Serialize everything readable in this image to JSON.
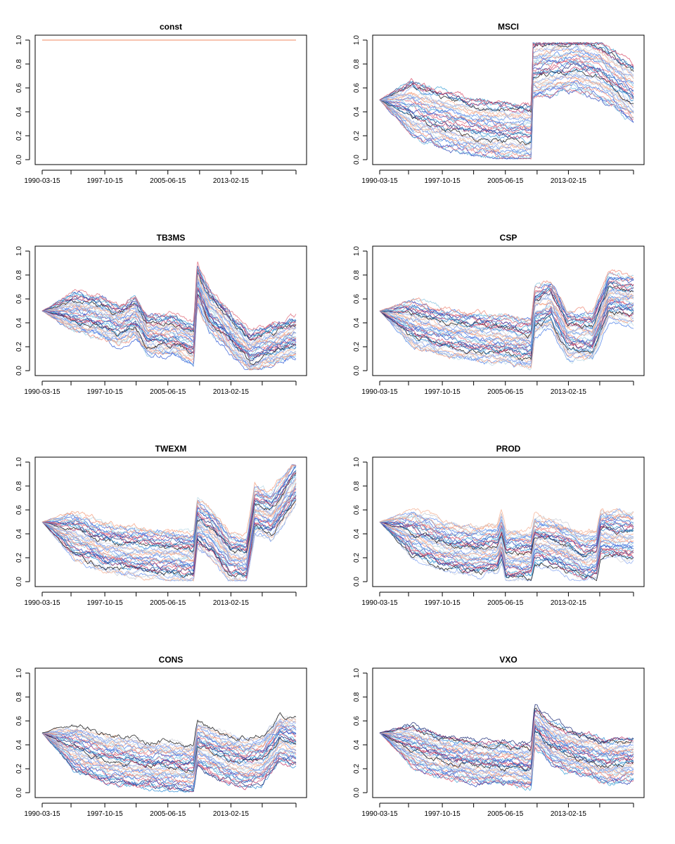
{
  "figure": {
    "x_tick_labels": [
      "1990-03-15",
      "1997-10-15",
      "2005-06-15",
      "2013-02-15"
    ],
    "y_tick_labels": [
      "0.0",
      "0.2",
      "0.4",
      "0.6",
      "0.8",
      "1.0"
    ],
    "palette": [
      "#1f2f7a",
      "#2b45b8",
      "#3a63d8",
      "#4d7ee8",
      "#6a95f0",
      "#8aa9f2",
      "#2f8fd6",
      "#42a5d8",
      "#68b8de",
      "#90c8e0",
      "#b8d8e6",
      "#c9ccd4",
      "#d2d4da",
      "#c23a6b",
      "#d9536f",
      "#e06c7a",
      "#f08a78",
      "#f5a080",
      "#f4b195",
      "#111111"
    ]
  },
  "chart_data": [
    {
      "type": "line",
      "title": "const",
      "x_range": [
        1990.2,
        2021.0
      ],
      "ylim": [
        0,
        1
      ],
      "n_series": 1,
      "shape": [
        [
          1990.2,
          1.0
        ],
        [
          2021.0,
          1.0
        ]
      ],
      "spread": 0.0
    },
    {
      "type": "line",
      "title": "MSCI",
      "x_range": [
        1990.2,
        2021.0
      ],
      "ylim": [
        0,
        1
      ],
      "n_series": 40,
      "shape": [
        [
          1990.2,
          0.5
        ],
        [
          1993.5,
          0.44
        ],
        [
          1997.0,
          0.35
        ],
        [
          2001.0,
          0.28
        ],
        [
          2005.0,
          0.24
        ],
        [
          2008.6,
          0.22
        ],
        [
          2008.8,
          0.75
        ],
        [
          2011.0,
          0.78
        ],
        [
          2014.0,
          0.82
        ],
        [
          2017.0,
          0.75
        ],
        [
          2021.0,
          0.55
        ]
      ],
      "spread": 0.24
    },
    {
      "type": "line",
      "title": "TB3MS",
      "x_range": [
        1990.2,
        2021.0
      ],
      "ylim": [
        0,
        1
      ],
      "n_series": 40,
      "shape": [
        [
          1990.2,
          0.5
        ],
        [
          1994.0,
          0.49
        ],
        [
          1997.5,
          0.44
        ],
        [
          1999.5,
          0.38
        ],
        [
          2001.5,
          0.45
        ],
        [
          2003.0,
          0.3
        ],
        [
          2006.0,
          0.3
        ],
        [
          2008.6,
          0.22
        ],
        [
          2009.0,
          0.72
        ],
        [
          2010.5,
          0.5
        ],
        [
          2012.0,
          0.4
        ],
        [
          2013.5,
          0.28
        ],
        [
          2015.5,
          0.15
        ],
        [
          2017.0,
          0.2
        ],
        [
          2021.0,
          0.28
        ]
      ],
      "spread": 0.17
    },
    {
      "type": "line",
      "title": "CSP",
      "x_range": [
        1990.2,
        2021.0
      ],
      "ylim": [
        0,
        1
      ],
      "n_series": 40,
      "shape": [
        [
          1990.2,
          0.5
        ],
        [
          1994.0,
          0.4
        ],
        [
          1998.0,
          0.32
        ],
        [
          2002.0,
          0.28
        ],
        [
          2006.0,
          0.25
        ],
        [
          2008.6,
          0.22
        ],
        [
          2009.0,
          0.5
        ],
        [
          2011.0,
          0.55
        ],
        [
          2013.0,
          0.3
        ],
        [
          2016.0,
          0.28
        ],
        [
          2018.0,
          0.62
        ],
        [
          2021.0,
          0.58
        ]
      ],
      "spread": 0.2
    },
    {
      "type": "line",
      "title": "TWEXM",
      "x_range": [
        1990.2,
        2021.0
      ],
      "ylim": [
        0,
        1
      ],
      "n_series": 40,
      "shape": [
        [
          1990.2,
          0.5
        ],
        [
          1994.0,
          0.38
        ],
        [
          1998.0,
          0.28
        ],
        [
          2002.0,
          0.24
        ],
        [
          2006.0,
          0.22
        ],
        [
          2008.6,
          0.2
        ],
        [
          2009.0,
          0.48
        ],
        [
          2011.0,
          0.38
        ],
        [
          2013.0,
          0.2
        ],
        [
          2015.0,
          0.18
        ],
        [
          2016.0,
          0.6
        ],
        [
          2018.0,
          0.55
        ],
        [
          2021.0,
          0.84
        ]
      ],
      "spread": 0.2
    },
    {
      "type": "line",
      "title": "PROD",
      "x_range": [
        1990.2,
        2021.0
      ],
      "ylim": [
        0,
        1
      ],
      "n_series": 40,
      "shape": [
        [
          1990.2,
          0.5
        ],
        [
          1994.0,
          0.4
        ],
        [
          1998.0,
          0.3
        ],
        [
          2002.0,
          0.25
        ],
        [
          2004.5,
          0.28
        ],
        [
          2005.0,
          0.38
        ],
        [
          2005.5,
          0.22
        ],
        [
          2008.6,
          0.22
        ],
        [
          2009.0,
          0.35
        ],
        [
          2012.0,
          0.3
        ],
        [
          2015.0,
          0.2
        ],
        [
          2016.5,
          0.22
        ],
        [
          2017.0,
          0.4
        ],
        [
          2021.0,
          0.38
        ]
      ],
      "spread": 0.2
    },
    {
      "type": "line",
      "title": "CONS",
      "x_range": [
        1990.2,
        2021.0
      ],
      "ylim": [
        0,
        1
      ],
      "n_series": 40,
      "shape": [
        [
          1990.2,
          0.5
        ],
        [
          1994.0,
          0.38
        ],
        [
          1998.0,
          0.28
        ],
        [
          2002.0,
          0.24
        ],
        [
          2006.0,
          0.22
        ],
        [
          2008.6,
          0.2
        ],
        [
          2009.0,
          0.4
        ],
        [
          2012.0,
          0.3
        ],
        [
          2015.0,
          0.25
        ],
        [
          2017.0,
          0.28
        ],
        [
          2019.0,
          0.45
        ],
        [
          2021.0,
          0.42
        ]
      ],
      "spread": 0.2
    },
    {
      "type": "line",
      "title": "VXO",
      "x_range": [
        1990.2,
        2021.0
      ],
      "ylim": [
        0,
        1
      ],
      "n_series": 40,
      "shape": [
        [
          1990.2,
          0.5
        ],
        [
          1994.0,
          0.4
        ],
        [
          1998.0,
          0.3
        ],
        [
          2002.0,
          0.26
        ],
        [
          2006.0,
          0.24
        ],
        [
          2008.6,
          0.22
        ],
        [
          2009.0,
          0.55
        ],
        [
          2011.0,
          0.42
        ],
        [
          2013.0,
          0.35
        ],
        [
          2016.0,
          0.3
        ],
        [
          2018.0,
          0.26
        ],
        [
          2021.0,
          0.28
        ]
      ],
      "spread": 0.18
    }
  ]
}
